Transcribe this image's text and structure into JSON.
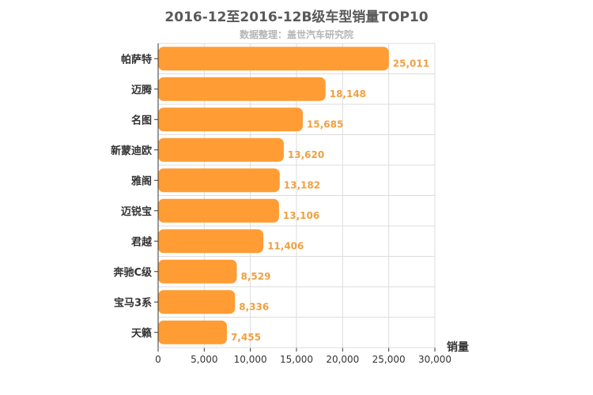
{
  "chart_data": {
    "type": "bar",
    "orientation": "horizontal",
    "title": "2016-12至2016-12B级车型销量TOP10",
    "subtitle": "数据整理：盖世汽车研究院",
    "xlabel": "销量",
    "xlim": [
      0,
      30000
    ],
    "xticks": [
      "0",
      "5,000",
      "10,000",
      "15,000",
      "20,000",
      "25,000",
      "30,000"
    ],
    "grid": true,
    "bar_color": "#ff9c33",
    "value_label_color": "#f0a040",
    "categories": [
      "帕萨特",
      "迈腾",
      "名图",
      "新蒙迪欧",
      "雅阁",
      "迈锐宝",
      "君越",
      "奔驰C级",
      "宝马3系",
      "天籁"
    ],
    "values": [
      25011,
      18148,
      15685,
      13620,
      13182,
      13106,
      11406,
      8529,
      8336,
      7455
    ],
    "value_labels": [
      "25,011",
      "18,148",
      "15,685",
      "13,620",
      "13,182",
      "13,106",
      "11,406",
      "8,529",
      "8,336",
      "7,455"
    ]
  }
}
